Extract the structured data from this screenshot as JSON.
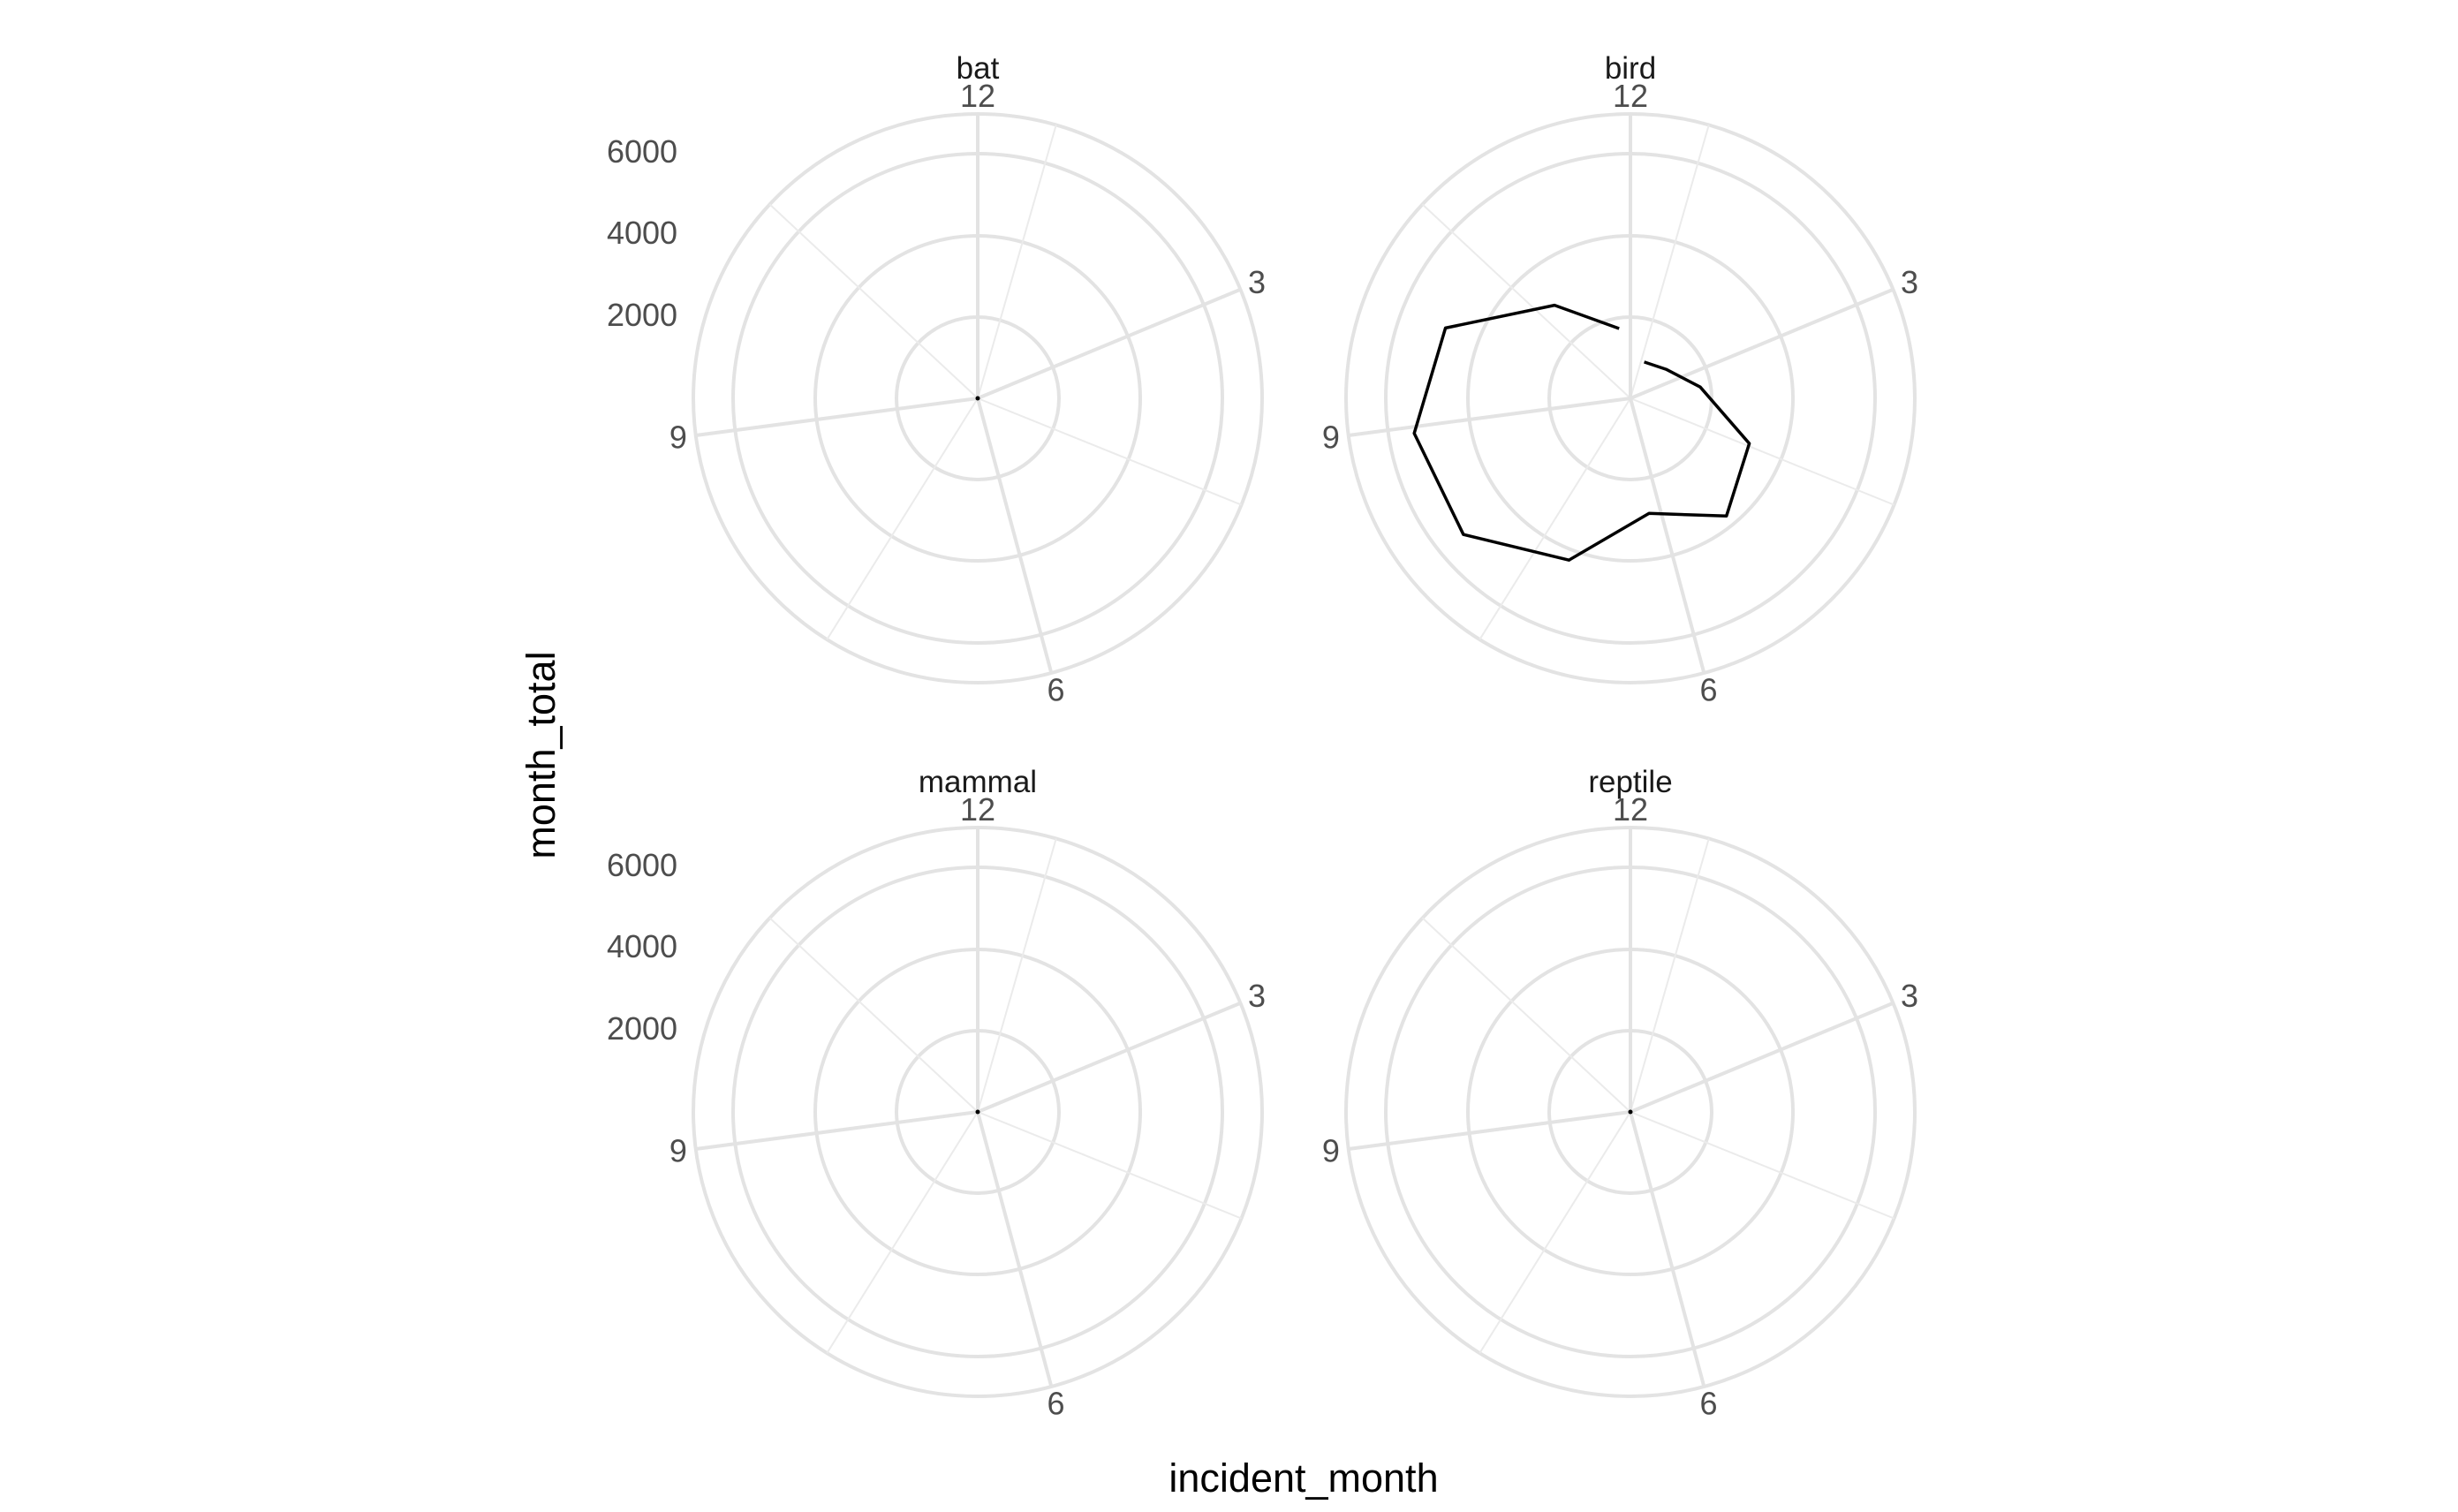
{
  "chart_data": {
    "type": "line",
    "coord": "polar",
    "xlabel": "incident_month",
    "ylabel": "month_total",
    "x_ticks": [
      "12",
      "3",
      "6",
      "9"
    ],
    "y_ticks": [
      "2000",
      "4000",
      "6000"
    ],
    "ylim": [
      0,
      7000
    ],
    "xlim": [
      1,
      12
    ],
    "facets": [
      {
        "name": "bat",
        "x": [
          1,
          2,
          3,
          4,
          5,
          6,
          7,
          8,
          9,
          10,
          11,
          12
        ],
        "values": [
          0,
          0,
          0,
          0,
          0,
          0,
          0,
          0,
          0,
          0,
          0,
          0
        ]
      },
      {
        "name": "bird",
        "x": [
          1,
          2,
          3,
          4,
          5,
          6,
          7,
          8,
          9,
          10,
          11,
          12
        ],
        "values": [
          1100,
          1300,
          2000,
          3600,
          4300,
          3300,
          4900,
          6100,
          6200,
          5600,
          3400,
          2000
        ]
      },
      {
        "name": "mammal",
        "x": [
          1,
          2,
          3,
          4,
          5,
          6,
          7,
          8,
          9,
          10,
          11,
          12
        ],
        "values": [
          0,
          0,
          0,
          0,
          0,
          0,
          0,
          0,
          0,
          0,
          0,
          0
        ]
      },
      {
        "name": "reptile",
        "x": [
          1,
          2,
          3,
          4,
          5,
          6,
          7,
          8,
          9,
          10,
          11,
          12
        ],
        "values": [
          0,
          0,
          0,
          0,
          0,
          0,
          0,
          0,
          0,
          0,
          0,
          0
        ]
      }
    ]
  }
}
